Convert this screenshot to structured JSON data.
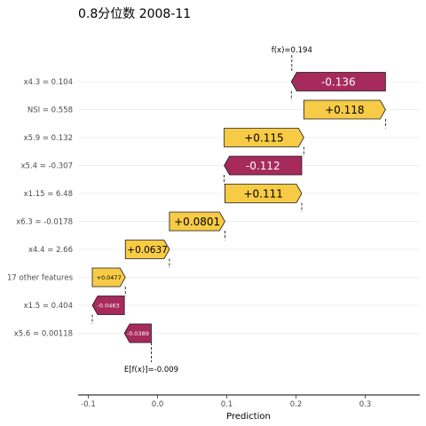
{
  "chart_data": {
    "type": "bar",
    "subtype": "waterfall",
    "title": "0.8分位数 2008-11",
    "xlabel": "Prediction",
    "xlim": [
      -0.11,
      0.37
    ],
    "xticks": [
      {
        "value": -0.1,
        "label": "-0.1"
      },
      {
        "value": 0.0,
        "label": "0.0"
      },
      {
        "value": 0.1,
        "label": "0.1"
      },
      {
        "value": 0.2,
        "label": "0.2"
      },
      {
        "value": 0.3,
        "label": "0.3"
      }
    ],
    "base_value": -0.009,
    "base_label": "E[f(x)]=-0.009",
    "prediction": 0.194,
    "prediction_label": "f(x)=0.194",
    "positive_color": "#F7CB45",
    "negative_color": "#A72A5D",
    "features": [
      {
        "label": "x4.3 = 0.104",
        "value": -0.136,
        "value_label": "-0.136"
      },
      {
        "label": "NSI = 0.558",
        "value": 0.118,
        "value_label": "+0.118"
      },
      {
        "label": "x5.9 = 0.132",
        "value": 0.115,
        "value_label": "+0.115"
      },
      {
        "label": "x5.4 = -0.307",
        "value": -0.112,
        "value_label": "-0.112"
      },
      {
        "label": "x1.15 = 6.48",
        "value": 0.111,
        "value_label": "+0.111"
      },
      {
        "label": "x6.3 = -0.0178",
        "value": 0.0801,
        "value_label": "+0.0801"
      },
      {
        "label": "x4.4 = 2.66",
        "value": 0.0637,
        "value_label": "+0.0637"
      },
      {
        "label": "17 other features",
        "value": 0.0477,
        "value_label": "+0.0477"
      },
      {
        "label": "x1.5 = 0.404",
        "value": -0.0463,
        "value_label": "-0.0463"
      },
      {
        "label": "x5.6 = 0.00118",
        "value": -0.0389,
        "value_label": "-0.0389"
      }
    ]
  }
}
